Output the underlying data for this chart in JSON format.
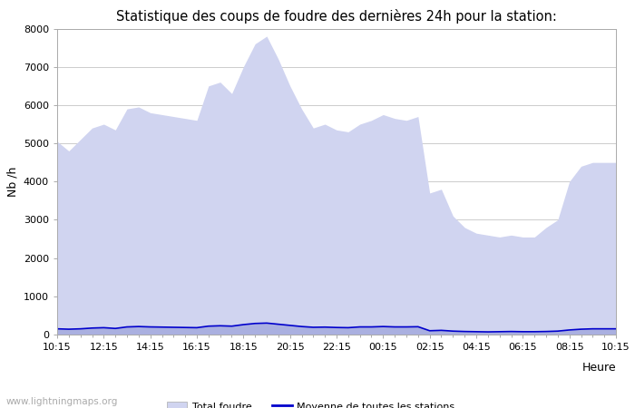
{
  "title": "Statistique des coups de foudre des dernières 24h pour la station:",
  "xlabel": "Heure",
  "ylabel": "Nb /h",
  "xlim": [
    0,
    48
  ],
  "ylim": [
    0,
    8000
  ],
  "yticks": [
    0,
    1000,
    2000,
    3000,
    4000,
    5000,
    6000,
    7000,
    8000
  ],
  "xtick_labels": [
    "10:15",
    "12:15",
    "14:15",
    "16:15",
    "18:15",
    "20:15",
    "22:15",
    "00:15",
    "02:15",
    "04:15",
    "06:15",
    "08:15",
    "10:15"
  ],
  "xtick_positions": [
    0,
    4,
    8,
    12,
    16,
    20,
    24,
    28,
    32,
    36,
    40,
    44,
    48
  ],
  "total_foudre_color": "#d0d4f0",
  "foudre_detectee_color": "#aab0e0",
  "moyenne_color": "#0000cc",
  "background_color": "#ffffff",
  "grid_color": "#cccccc",
  "watermark": "www.lightningmaps.org",
  "total_foudre": [
    5050,
    4800,
    5100,
    5400,
    5500,
    5350,
    5900,
    5950,
    5800,
    5750,
    5700,
    5650,
    5600,
    6500,
    6600,
    6300,
    7000,
    7600,
    7800,
    7200,
    6500,
    5900,
    5400,
    5500,
    5350,
    5300,
    5500,
    5600,
    5750,
    5650,
    5600,
    5700,
    3700,
    3800,
    3100,
    2800,
    2650,
    2600,
    2550,
    2600,
    2550,
    2550,
    2800,
    3000,
    4000,
    4400,
    4500,
    4500,
    4500
  ],
  "foudre_detectee": [
    150,
    140,
    150,
    170,
    180,
    160,
    200,
    210,
    200,
    195,
    190,
    185,
    180,
    220,
    230,
    220,
    260,
    290,
    300,
    270,
    240,
    210,
    190,
    195,
    185,
    180,
    200,
    200,
    210,
    200,
    200,
    205,
    100,
    110,
    90,
    80,
    75,
    70,
    75,
    80,
    75,
    75,
    80,
    90,
    120,
    140,
    150,
    150,
    150
  ],
  "moyenne": [
    150,
    140,
    150,
    170,
    180,
    160,
    200,
    210,
    200,
    195,
    190,
    185,
    180,
    220,
    230,
    220,
    260,
    290,
    300,
    270,
    240,
    210,
    190,
    195,
    185,
    180,
    200,
    200,
    210,
    200,
    200,
    205,
    100,
    110,
    90,
    80,
    75,
    70,
    75,
    80,
    75,
    75,
    80,
    90,
    120,
    140,
    150,
    150,
    150
  ]
}
